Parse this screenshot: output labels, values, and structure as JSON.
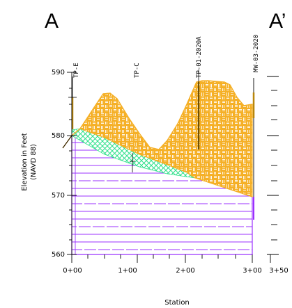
{
  "section": {
    "start_label": "A",
    "end_label": "A’"
  },
  "axes": {
    "y_title_line1": "Elevation in Feet",
    "y_title_line2": "(NAVD 88)",
    "x_title": "Station",
    "y_ticks": [
      "590",
      "580",
      "570",
      "560"
    ],
    "x_ticks": [
      "0+00",
      "1+00",
      "2+00",
      "3+00",
      "3+50"
    ]
  },
  "borings": [
    {
      "id": "TP-E"
    },
    {
      "id": "TP-C"
    },
    {
      "id": "TP-01-2020A"
    },
    {
      "id": "MW-03-2020"
    }
  ],
  "colors": {
    "fill_orange": "#f5b027",
    "bedrock_purple": "#9b30ff",
    "native_green": "#2ee08a",
    "axis": "#000000"
  }
}
